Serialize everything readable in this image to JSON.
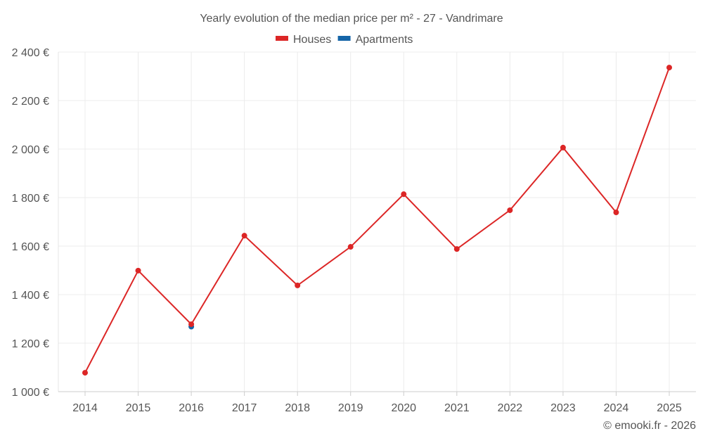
{
  "chart_data": {
    "type": "line",
    "title": "Yearly evolution of the median price per m² - 27 - Vandrimare",
    "categories": [
      "2014",
      "2015",
      "2016",
      "2017",
      "2018",
      "2019",
      "2020",
      "2021",
      "2022",
      "2023",
      "2024",
      "2025"
    ],
    "series": [
      {
        "name": "Houses",
        "color": "#dc2626",
        "values": [
          1078,
          1499,
          1278,
          1643,
          1438,
          1597,
          1814,
          1588,
          1748,
          2006,
          1739,
          2336
        ]
      },
      {
        "name": "Apartments",
        "color": "#1565a8",
        "values": [
          null,
          null,
          1268,
          null,
          null,
          null,
          null,
          null,
          null,
          null,
          null,
          null
        ]
      }
    ],
    "ylim": [
      1000,
      2400
    ],
    "yticks": [
      1000,
      1200,
      1400,
      1600,
      1800,
      2000,
      2200,
      2400
    ],
    "ytick_labels": [
      "1 000 €",
      "1 200 €",
      "1 400 €",
      "1 600 €",
      "1 800 €",
      "2 000 €",
      "2 200 €",
      "2 400 €"
    ],
    "xlabel": "",
    "ylabel": "",
    "grid": true,
    "legend": "top-center",
    "credit": "© emooki.fr - 2026"
  }
}
